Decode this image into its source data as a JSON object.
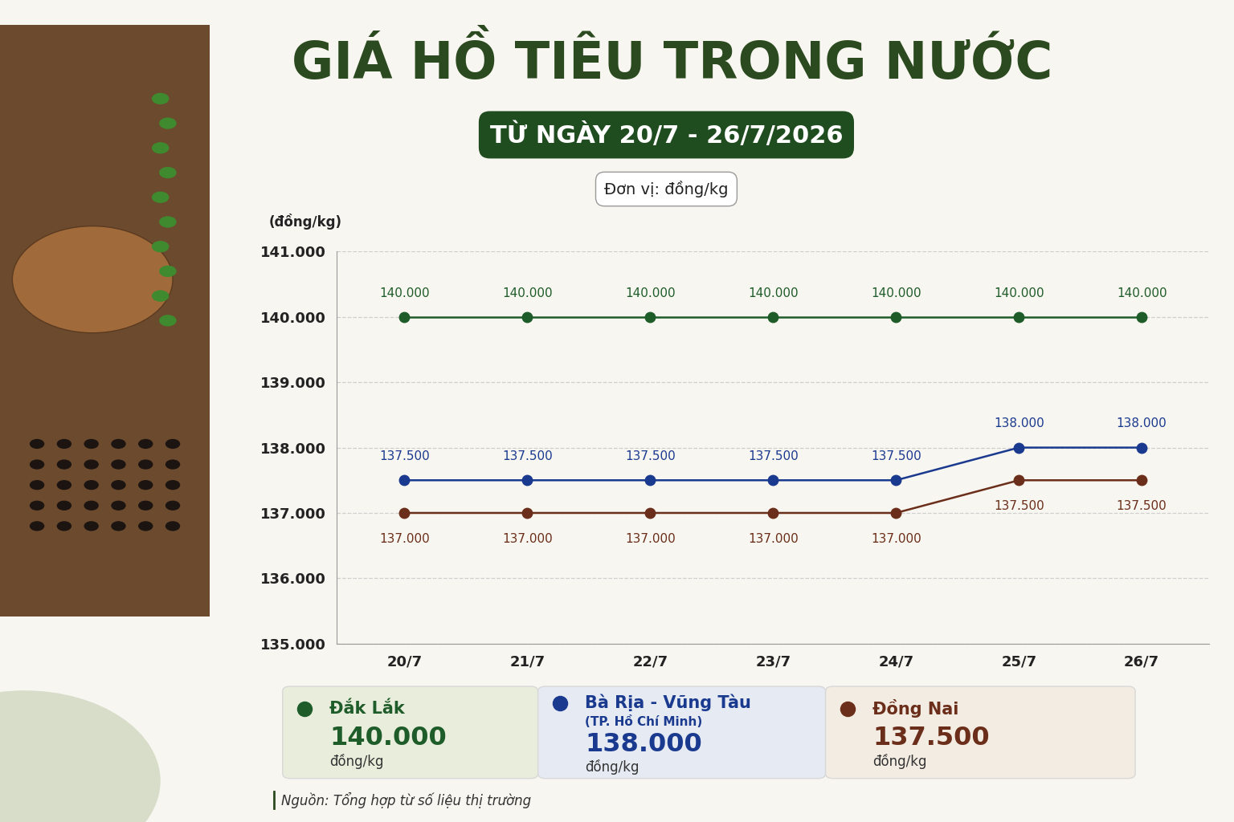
{
  "chart_data": {
    "type": "line",
    "title": "GIÁ HỒ TIÊU TRONG NƯỚC",
    "subtitle": "TỪ NGÀY 20/7 - 26/7/2026",
    "unit_note": "Đơn vị: đồng/kg",
    "y_label": "(đồng/kg)",
    "categories": [
      "20/7",
      "21/7",
      "22/7",
      "23/7",
      "24/7",
      "25/7",
      "26/7"
    ],
    "series": [
      {
        "name": "Đắk Lắk",
        "color": "#1e5c2a",
        "marker": "o",
        "line_style": "solid",
        "values": [
          140000,
          140000,
          140000,
          140000,
          140000,
          140000,
          140000
        ],
        "value_labels": [
          "140.000",
          "140.000",
          "140.000",
          "140.000",
          "140.000",
          "140.000",
          "140.000"
        ]
      },
      {
        "name": "Bà Rịa - Vũng Tàu",
        "color": "#1a3a8f",
        "marker": "o",
        "line_style": "solid",
        "values": [
          137500,
          137500,
          137500,
          137500,
          137500,
          138000,
          138000
        ],
        "value_labels": [
          "137.500",
          "137.500",
          "137.500",
          "137.500",
          "137.500",
          "138.000",
          "138.000"
        ]
      },
      {
        "name": "Đồng Nai",
        "color": "#6b2e1a",
        "marker": "o",
        "line_style": "solid",
        "values": [
          137000,
          137000,
          137000,
          137000,
          137000,
          137500,
          137500
        ],
        "value_labels": [
          "137.000",
          "137.000",
          "137.000",
          "137.000",
          "137.000",
          "137.500",
          "137.500"
        ]
      }
    ],
    "ylim": [
      135000,
      141000
    ],
    "yticks": [
      {
        "value": 135000,
        "label": "135.000"
      },
      {
        "value": 136000,
        "label": "136.000"
      },
      {
        "value": 137000,
        "label": "137.000"
      },
      {
        "value": 138000,
        "label": "138.000"
      },
      {
        "value": 139000,
        "label": "139.000"
      },
      {
        "value": 140000,
        "label": "140.000"
      },
      {
        "value": 141000,
        "label": "141.000"
      }
    ],
    "grid": true,
    "data_labels": true,
    "legend_cards": [
      {
        "name": "Đắk Lắk",
        "value_label": "140.000",
        "unit": "đồng/kg"
      },
      {
        "name": "Bà Rịa - Vũng Tàu",
        "note": "(TP. Hồ Chí Minh)",
        "value_label": "138.000",
        "unit": "đồng/kg"
      },
      {
        "name": "Đồng Nai",
        "value_label": "137.500",
        "unit": "đồng/kg"
      }
    ],
    "source": "Nguồn: Tổng hợp từ số liệu thị trường"
  }
}
